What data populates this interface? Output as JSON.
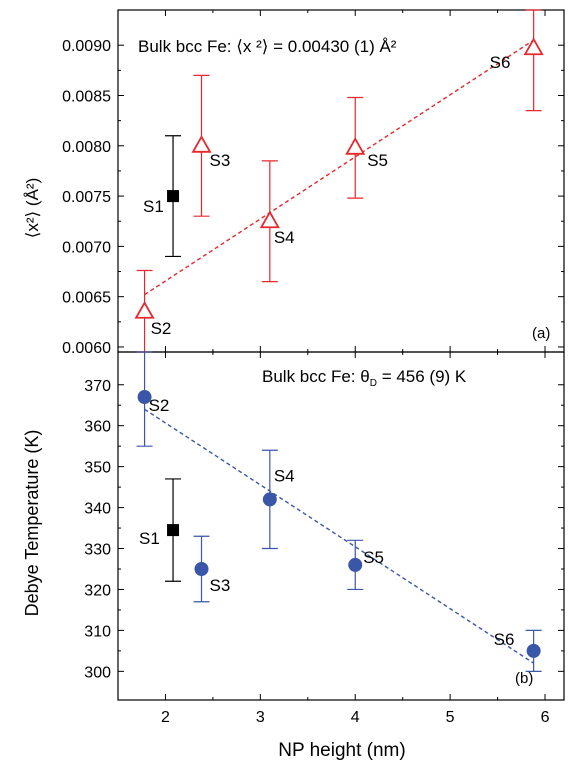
{
  "chart_data": [
    {
      "panel": "(a)",
      "type": "scatter",
      "annotation": "Bulk bcc Fe: ⟨x ²⟩ = 0.00430 (1) Å²",
      "ylabel": "⟨x²⟩ (Å²)",
      "xlim": [
        1.5,
        6.2
      ],
      "ylim": [
        0.00595,
        0.00935
      ],
      "yticks": [
        "0.0060",
        "0.0065",
        "0.0070",
        "0.0075",
        "0.0080",
        "0.0085",
        "0.0090"
      ],
      "ytick_values": [
        0.006,
        0.0065,
        0.007,
        0.0075,
        0.008,
        0.0085,
        0.009
      ],
      "series": [
        {
          "marker": "square",
          "color": "#000000",
          "points": [
            {
              "label": "S1",
              "x": 2.08,
              "y": 0.0075,
              "err_lo": 0.0069,
              "err_hi": 0.0081
            }
          ]
        },
        {
          "marker": "triangle-open",
          "color": "#e8262b",
          "points": [
            {
              "label": "S2",
              "x": 1.78,
              "y": 0.00635,
              "err_lo": 0.00595,
              "err_hi": 0.00676
            },
            {
              "label": "S3",
              "x": 2.38,
              "y": 0.008,
              "err_lo": 0.0073,
              "err_hi": 0.0087
            },
            {
              "label": "S4",
              "x": 3.1,
              "y": 0.00725,
              "err_lo": 0.00665,
              "err_hi": 0.00785
            },
            {
              "label": "S5",
              "x": 4.0,
              "y": 0.00798,
              "err_lo": 0.00748,
              "err_hi": 0.00848
            },
            {
              "label": "S6",
              "x": 5.88,
              "y": 0.00897,
              "err_lo": 0.00835,
              "err_hi": 0.00935
            }
          ]
        }
      ],
      "fit_line": {
        "color": "#e8262b",
        "x": [
          1.78,
          5.88
        ],
        "y": [
          0.00652,
          0.00905
        ]
      }
    },
    {
      "panel": "(b)",
      "type": "scatter",
      "annotation": "Bulk bcc Fe: θD = 456 (9) K",
      "annotation_parts": {
        "prefix": "Bulk bcc Fe: ",
        "symbol": "θ",
        "subscript": "D",
        "suffix": " = 456 (9) K"
      },
      "xlabel": "NP height (nm)",
      "ylabel": "Debye Temperature (K)",
      "xlim": [
        1.5,
        6.2
      ],
      "ylim": [
        293,
        378
      ],
      "xticks": [
        "2",
        "3",
        "4",
        "5",
        "6"
      ],
      "xtick_values": [
        2,
        3,
        4,
        5,
        6
      ],
      "yticks": [
        "300",
        "310",
        "320",
        "330",
        "340",
        "350",
        "360",
        "370"
      ],
      "ytick_values": [
        300,
        310,
        320,
        330,
        340,
        350,
        360,
        370
      ],
      "series": [
        {
          "marker": "square",
          "color": "#000000",
          "points": [
            {
              "label": "S1",
              "x": 2.08,
              "y": 334.5,
              "err_lo": 322,
              "err_hi": 347
            }
          ]
        },
        {
          "marker": "circle",
          "color": "#3a56a8",
          "points": [
            {
              "label": "S2",
              "x": 1.78,
              "y": 367,
              "err_lo": 355,
              "err_hi": 378
            },
            {
              "label": "S3",
              "x": 2.38,
              "y": 325,
              "err_lo": 317,
              "err_hi": 333
            },
            {
              "label": "S4",
              "x": 3.1,
              "y": 342,
              "err_lo": 330,
              "err_hi": 354
            },
            {
              "label": "S5",
              "x": 4.0,
              "y": 326,
              "err_lo": 320,
              "err_hi": 332
            },
            {
              "label": "S6",
              "x": 5.88,
              "y": 305,
              "err_lo": 300,
              "err_hi": 310
            }
          ]
        }
      ],
      "fit_line": {
        "color": "#3a56a8",
        "x": [
          1.78,
          5.88
        ],
        "y": [
          364,
          302
        ]
      }
    }
  ]
}
